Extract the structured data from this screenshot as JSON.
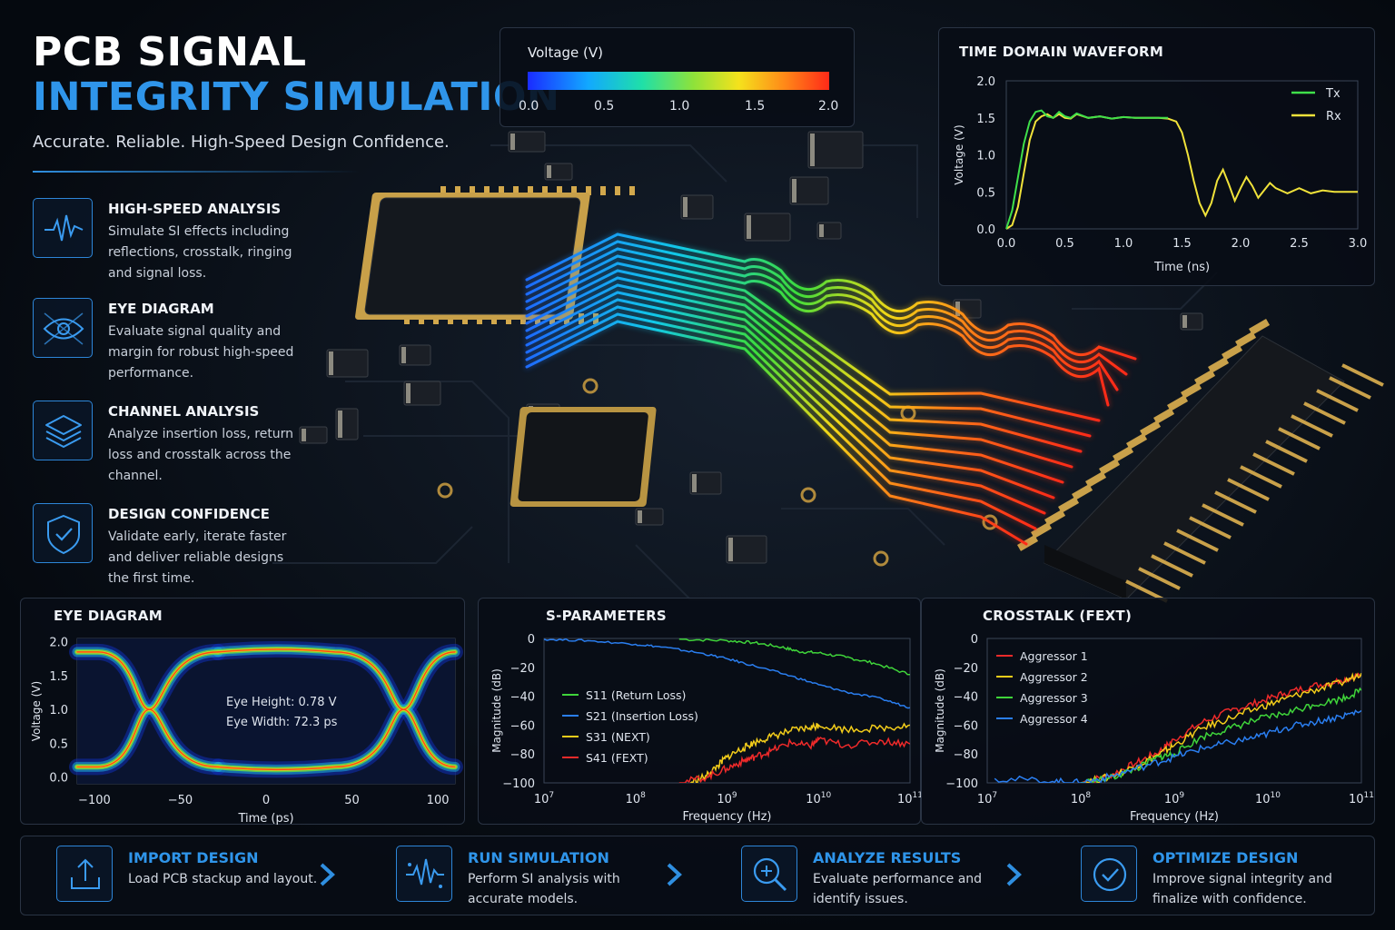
{
  "header": {
    "title_line1": "PCB SIGNAL",
    "title_line2": "INTEGRITY SIMULATION",
    "tagline": "Accurate. Reliable. High-Speed Design Confidence."
  },
  "features": [
    {
      "icon": "waveform-icon",
      "title": "HIGH-SPEED ANALYSIS",
      "body": "Simulate SI effects including reflections, crosstalk, ringing and signal loss."
    },
    {
      "icon": "eye-icon",
      "title": "EYE DIAGRAM",
      "body": "Evaluate signal quality and margin for robust high-speed performance."
    },
    {
      "icon": "layers-icon",
      "title": "CHANNEL ANALYSIS",
      "body": "Analyze insertion loss, return loss and crosstalk across the channel."
    },
    {
      "icon": "shield-check-icon",
      "title": "DESIGN CONFIDENCE",
      "body": "Validate early, iterate faster and deliver reliable designs the first time."
    }
  ],
  "colors": {
    "accent": "#2f95ea",
    "tx": "#3fe04a",
    "rx": "#f0e23a",
    "s11": "#3fd43a",
    "s21": "#2a7ef0",
    "s31": "#f2cc1a",
    "s41": "#ee2a2a",
    "agg1": "#ee2a2a",
    "agg2": "#f2cc1a",
    "agg3": "#3fd43a",
    "agg4": "#2a7ef0"
  },
  "colorbar": {
    "title": "Voltage (V)",
    "ticks": [
      "0.0",
      "0.5",
      "1.0",
      "1.5",
      "2.0"
    ]
  },
  "charts": {
    "waveform": {
      "type": "line",
      "title": "TIME DOMAIN WAVEFORM",
      "xlabel": "Time (ns)",
      "ylabel": "Voltage (V)",
      "xlim": [
        0,
        3.0
      ],
      "ylim": [
        0,
        2.0
      ],
      "xticks": [
        "0.0",
        "0.5",
        "1.0",
        "1.5",
        "2.0",
        "2.5",
        "3.0"
      ],
      "yticks": [
        "0.0",
        "0.5",
        "1.0",
        "1.5",
        "2.0"
      ],
      "series": [
        {
          "name": "Tx",
          "x": [
            0,
            0.05,
            0.1,
            0.15,
            0.2,
            0.25,
            0.3,
            0.35,
            0.4,
            0.45,
            0.5,
            0.55,
            0.6,
            0.7,
            0.8,
            0.9,
            1.0,
            1.1,
            1.2,
            1.3,
            1.38
          ],
          "y": [
            0,
            0.25,
            0.7,
            1.15,
            1.45,
            1.58,
            1.6,
            1.52,
            1.5,
            1.58,
            1.52,
            1.5,
            1.56,
            1.5,
            1.52,
            1.49,
            1.51,
            1.5,
            1.5,
            1.5,
            1.5
          ]
        },
        {
          "name": "Rx",
          "x": [
            0,
            0.05,
            0.1,
            0.15,
            0.2,
            0.25,
            0.3,
            0.35,
            0.4,
            0.45,
            0.5,
            0.55,
            0.6,
            0.7,
            0.8,
            0.9,
            1.0,
            1.1,
            1.2,
            1.3,
            1.38,
            1.45,
            1.5,
            1.55,
            1.6,
            1.65,
            1.7,
            1.75,
            1.8,
            1.85,
            1.9,
            1.95,
            2.0,
            2.05,
            2.1,
            2.15,
            2.2,
            2.25,
            2.3,
            2.4,
            2.5,
            2.6,
            2.7,
            2.8,
            2.9,
            3.0
          ],
          "y": [
            0,
            0.05,
            0.3,
            0.75,
            1.2,
            1.45,
            1.52,
            1.55,
            1.5,
            1.55,
            1.5,
            1.49,
            1.55,
            1.5,
            1.52,
            1.49,
            1.51,
            1.5,
            1.5,
            1.5,
            1.49,
            1.45,
            1.3,
            1.0,
            0.65,
            0.35,
            0.18,
            0.35,
            0.65,
            0.8,
            0.6,
            0.38,
            0.55,
            0.7,
            0.58,
            0.42,
            0.52,
            0.62,
            0.55,
            0.48,
            0.55,
            0.48,
            0.52,
            0.5,
            0.5,
            0.5
          ]
        }
      ]
    },
    "eye": {
      "type": "eye",
      "title": "EYE DIAGRAM",
      "xlabel": "Time (ps)",
      "ylabel": "Voltage (V)",
      "xlim": [
        -110,
        110
      ],
      "ylim": [
        -0.1,
        2.05
      ],
      "xticks": [
        "−100",
        "−50",
        "0",
        "50",
        "100"
      ],
      "yticks": [
        "0.0",
        "0.5",
        "1.0",
        "1.5",
        "2.0"
      ],
      "crossings_ps": [
        -68,
        80
      ],
      "low_level": 0.15,
      "high_level": 1.85,
      "annotations": [
        "Eye Height: 0.78 V",
        "Eye Width: 72.3 ps"
      ]
    },
    "sparams": {
      "type": "line",
      "title": "S-PARAMETERS",
      "xlabel": "Frequency (Hz)",
      "ylabel": "Magnitude (dB)",
      "x_scale": "log",
      "xlim": [
        10000000.0,
        100000000000.0
      ],
      "ylim": [
        -100,
        0
      ],
      "xtick_base": [
        "10",
        "10",
        "10",
        "10",
        "10"
      ],
      "xtick_exp": [
        "7",
        "8",
        "9",
        "10",
        "11"
      ],
      "yticks": [
        "0",
        "−20",
        "−40",
        "−60",
        "−80",
        "−100"
      ],
      "series": [
        {
          "name": "S11 (Return Loss)",
          "x": [
            300000000.0,
            1000000000.0,
            2000000000.0,
            4000000000.0,
            6000000000.0,
            10000000000.0,
            20000000000.0,
            40000000000.0,
            100000000000.0
          ],
          "y": [
            -0.5,
            -1.5,
            -3,
            -6,
            -9,
            -10,
            -13,
            -17,
            -25
          ]
        },
        {
          "name": "S21 (Insertion Loss)",
          "x": [
            10000000.0,
            30000000.0,
            100000000.0,
            200000000.0,
            500000000.0,
            1000000000.0,
            2000000000.0,
            5000000000.0,
            10000000000.0,
            20000000000.0,
            50000000000.0,
            100000000000.0
          ],
          "y": [
            -0.5,
            -1.5,
            -4,
            -6,
            -10,
            -14,
            -19,
            -26,
            -32,
            -37,
            -42,
            -48
          ]
        },
        {
          "name": "S31 (NEXT)",
          "x": [
            400000000.0,
            600000000.0,
            800000000.0,
            1000000000.0,
            1500000000.0,
            2000000000.0,
            3000000000.0,
            5000000000.0,
            8000000000.0,
            10000000000.0,
            20000000000.0,
            50000000000.0,
            100000000000.0
          ],
          "y": [
            -100,
            -95,
            -88,
            -82,
            -76,
            -72,
            -68,
            -64,
            -62,
            -60,
            -63,
            -62,
            -60
          ]
        },
        {
          "name": "S41 (FEXT)",
          "x": [
            300000000.0,
            600000000.0,
            1000000000.0,
            1500000000.0,
            2000000000.0,
            3000000000.0,
            5000000000.0,
            8000000000.0,
            10000000000.0,
            20000000000.0,
            50000000000.0,
            100000000000.0
          ],
          "y": [
            -100,
            -96,
            -90,
            -85,
            -82,
            -78,
            -72,
            -75,
            -70,
            -74,
            -71,
            -73
          ]
        }
      ]
    },
    "crosstalk": {
      "type": "line",
      "title": "CROSSTALK (FEXT)",
      "xlabel": "Frequency (Hz)",
      "ylabel": "Magnitude (dB)",
      "x_scale": "log",
      "xlim": [
        10000000.0,
        100000000000.0
      ],
      "ylim": [
        -100,
        0
      ],
      "xtick_base": [
        "10",
        "10",
        "10",
        "10",
        "10"
      ],
      "xtick_exp": [
        "7",
        "8",
        "9",
        "10",
        "11"
      ],
      "yticks": [
        "0",
        "−20",
        "−40",
        "−60",
        "−80",
        "−100"
      ],
      "series": [
        {
          "name": "Aggressor 1",
          "x": [
            100000000.0,
            200000000.0,
            400000000.0,
            700000000.0,
            1000000000.0,
            2000000000.0,
            4000000000.0,
            8000000000.0,
            15000000000.0,
            30000000000.0,
            60000000000.0,
            100000000000.0
          ],
          "y": [
            -100,
            -95,
            -86,
            -78,
            -70,
            -58,
            -50,
            -44,
            -38,
            -33,
            -29,
            -25
          ]
        },
        {
          "name": "Aggressor 2",
          "x": [
            100000000.0,
            200000000.0,
            400000000.0,
            700000000.0,
            1000000000.0,
            2000000000.0,
            4000000000.0,
            8000000000.0,
            15000000000.0,
            30000000000.0,
            60000000000.0,
            100000000000.0
          ],
          "y": [
            -100,
            -96,
            -88,
            -80,
            -74,
            -62,
            -55,
            -48,
            -42,
            -36,
            -31,
            -24
          ]
        },
        {
          "name": "Aggressor 3",
          "x": [
            100000000.0,
            200000000.0,
            400000000.0,
            700000000.0,
            1000000000.0,
            2000000000.0,
            4000000000.0,
            8000000000.0,
            15000000000.0,
            30000000000.0,
            60000000000.0,
            100000000000.0
          ],
          "y": [
            -100,
            -97,
            -90,
            -82,
            -80,
            -68,
            -62,
            -56,
            -52,
            -46,
            -42,
            -36
          ]
        },
        {
          "name": "Aggressor 4",
          "x": [
            12000000.0,
            50000000.0,
            100000000.0,
            200000000.0,
            500000000.0,
            1000000000.0,
            2000000000.0,
            4000000000.0,
            8000000000.0,
            15000000000.0,
            30000000000.0,
            60000000000.0,
            100000000000.0
          ],
          "y": [
            -97,
            -99,
            -100,
            -96,
            -88,
            -82,
            -76,
            -72,
            -68,
            -62,
            -58,
            -54,
            -50
          ]
        }
      ]
    }
  },
  "steps": [
    {
      "icon": "upload-icon",
      "title": "IMPORT DESIGN",
      "body": "Load PCB stackup and layout."
    },
    {
      "icon": "pulse-icon",
      "title": "RUN SIMULATION",
      "body": "Perform SI analysis with accurate models."
    },
    {
      "icon": "magnifier-icon",
      "title": "ANALYZE RESULTS",
      "body": "Evaluate performance and identify issues."
    },
    {
      "icon": "check-circle-icon",
      "title": "OPTIMIZE DESIGN",
      "body": "Improve signal integrity and finalize with confidence."
    }
  ]
}
